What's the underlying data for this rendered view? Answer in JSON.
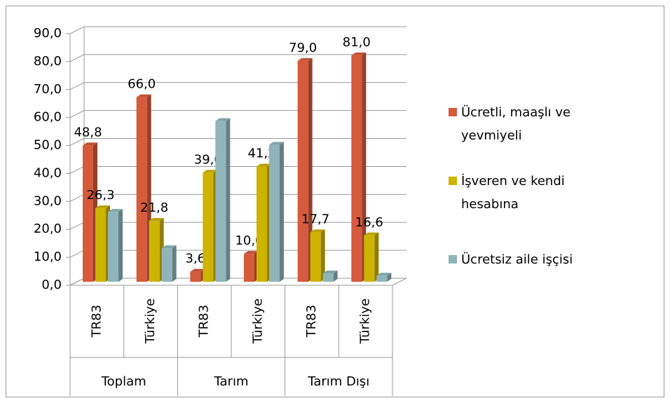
{
  "chart_data": {
    "type": "bar3d",
    "groups": [
      "Toplam",
      "Tarım",
      "Tarım Dışı"
    ],
    "categories": [
      "TR83",
      "Türkiye",
      "TR83",
      "Türkiye",
      "TR83",
      "Türkiye"
    ],
    "series": [
      {
        "name": "Ücretli, maaşlı ve yevmiyeli",
        "color": "#d65a3c",
        "values": [
          48.8,
          66.0,
          3.6,
          10.0,
          79.0,
          81.0
        ],
        "value_labels": [
          "48,8",
          "66,0",
          "3,6",
          "10,0",
          "79,0",
          "81,0"
        ]
      },
      {
        "name": "İşveren ve kendi hesabına",
        "color": "#cdb400",
        "values": [
          26.3,
          21.8,
          39.0,
          41.2,
          17.7,
          16.6
        ],
        "value_labels": [
          "26,3",
          "21,8",
          "39,0",
          "41,2",
          "17,7",
          "16,6"
        ]
      },
      {
        "name": "Ücretsiz aile işçisi",
        "color": "#8fb5b9",
        "values": [
          25.0,
          12.0,
          57.5,
          49.0,
          3.0,
          2.2
        ]
      }
    ],
    "ylim": [
      0,
      90
    ],
    "yticks": [
      {
        "value": 0,
        "label": "0,0"
      },
      {
        "value": 10,
        "label": "10,0"
      },
      {
        "value": 20,
        "label": "20,0"
      },
      {
        "value": 30,
        "label": "30,0"
      },
      {
        "value": 40,
        "label": "40,0"
      },
      {
        "value": 50,
        "label": "50,0"
      },
      {
        "value": 60,
        "label": "60,0"
      },
      {
        "value": 70,
        "label": "70,0"
      },
      {
        "value": 80,
        "label": "80,0"
      },
      {
        "value": 90,
        "label": "90,0"
      }
    ],
    "grid": true,
    "legend": "right"
  }
}
